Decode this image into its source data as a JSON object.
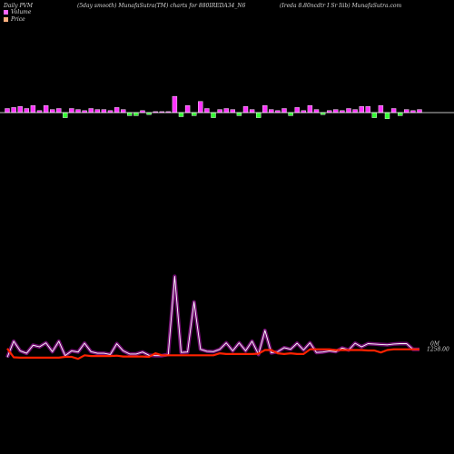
{
  "header": {
    "left": "Daily PVM",
    "center": "(5day smooth) MunafaSutra(TM) charts for 880IREDA34_N6",
    "right": "(Ireda  8.80ncdtr I Sr Iiib) MunafaSutra.com"
  },
  "legend": [
    {
      "label": "Volume",
      "color": "#ff66ff"
    },
    {
      "label": "Price",
      "color": "#ffb080"
    }
  ],
  "colors": {
    "up": "#ff33ff",
    "down": "#33ff33",
    "price": "#ff2200",
    "pvm": "#ff22ff",
    "baseline": "#ffffff"
  },
  "chart_data": [
    {
      "type": "bar",
      "title": "Volume",
      "values": [
        4,
        5,
        6,
        4,
        7,
        2,
        7,
        3,
        4,
        -5,
        4,
        3,
        2,
        4,
        3,
        3,
        2,
        5,
        3,
        -3,
        -3,
        2,
        -2,
        1,
        1,
        1,
        16,
        -4,
        7,
        -3,
        11,
        4,
        -5,
        3,
        4,
        3,
        -3,
        6,
        3,
        -5,
        7,
        3,
        2,
        4,
        -3,
        5,
        2,
        7,
        3,
        -2,
        2,
        3,
        2,
        4,
        3,
        6,
        6,
        -5,
        7,
        -6,
        4,
        -3,
        3,
        2,
        3
      ]
    },
    {
      "type": "line",
      "series": [
        {
          "name": "Price",
          "values": [
            1250,
            1228,
            1227,
            1227,
            1227,
            1227,
            1227,
            1227,
            1227,
            1229,
            1229,
            1224,
            1233,
            1231,
            1231,
            1231,
            1231,
            1232,
            1230,
            1230,
            1230,
            1230,
            1229,
            1238,
            1233,
            1233,
            1233,
            1233,
            1233,
            1233,
            1233,
            1233,
            1233,
            1238,
            1236,
            1236,
            1236,
            1236,
            1236,
            1237,
            1246,
            1246,
            1238,
            1236,
            1238,
            1236,
            1236,
            1248,
            1248,
            1248,
            1248,
            1246,
            1246,
            1246,
            1246,
            1246,
            1245,
            1245,
            1240,
            1246,
            1248,
            1248,
            1248,
            1248,
            1248
          ]
        },
        {
          "name": "PVM",
          "values": [
            1228,
            1268,
            1244,
            1238,
            1258,
            1254,
            1264,
            1242,
            1268,
            1232,
            1244,
            1241,
            1263,
            1242,
            1238,
            1238,
            1235,
            1262,
            1244,
            1236,
            1236,
            1241,
            1233,
            1232,
            1232,
            1235,
            1430,
            1240,
            1241,
            1366,
            1248,
            1243,
            1242,
            1248,
            1264,
            1244,
            1264,
            1244,
            1268,
            1235,
            1295,
            1239,
            1242,
            1252,
            1248,
            1263,
            1246,
            1264,
            1240,
            1241,
            1244,
            1242,
            1251,
            1246,
            1263,
            1254,
            1262,
            1261,
            1260,
            1259,
            1261,
            1262,
            1262,
            1248,
            1248
          ]
        }
      ],
      "annotation": "1258.00",
      "annotation2": "0M"
    }
  ]
}
